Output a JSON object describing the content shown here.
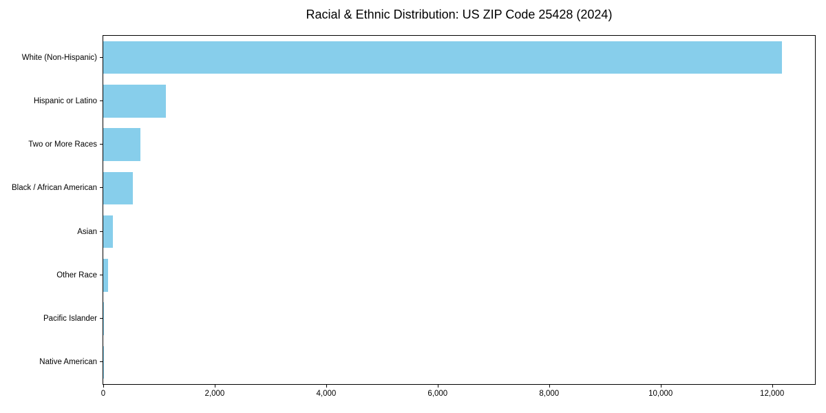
{
  "chart_data": {
    "type": "bar",
    "orientation": "horizontal",
    "title": "Racial & Ethnic Distribution: US ZIP Code 25428 (2024)",
    "categories": [
      "White (Non-Hispanic)",
      "Hispanic or Latino",
      "Two or More Races",
      "Black / African American",
      "Asian",
      "Other Race",
      "Pacific Islander",
      "Native American"
    ],
    "values": [
      12180,
      1130,
      670,
      530,
      175,
      90,
      14,
      2
    ],
    "xlabel": "",
    "ylabel": "",
    "xlim": [
      0,
      12770
    ],
    "xticks": [
      0,
      2000,
      4000,
      6000,
      8000,
      10000,
      12000
    ],
    "xtick_labels": [
      "0",
      "2,000",
      "4,000",
      "6,000",
      "8,000",
      "10,000",
      "12,000"
    ],
    "bar_color": "#87CEEB",
    "axis_color": "#000000",
    "background_color": "#ffffff",
    "grid": false,
    "legend_position": "none"
  }
}
